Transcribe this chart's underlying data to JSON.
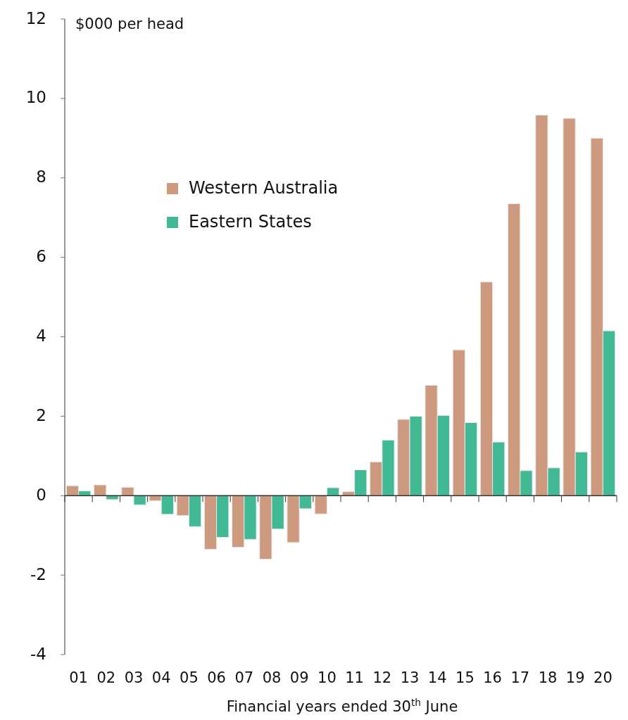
{
  "chart_data": {
    "type": "bar",
    "ylabel": "$000 per head",
    "xlabel": "Financial years ended 30$^{th}$ June",
    "categories": [
      "01",
      "02",
      "03",
      "04",
      "05",
      "06",
      "07",
      "08",
      "09",
      "10",
      "11",
      "12",
      "13",
      "14",
      "15",
      "16",
      "17",
      "18",
      "19",
      "20"
    ],
    "series": [
      {
        "name": "Western Australia",
        "color": "#cd9a80",
        "values": [
          0.25,
          0.27,
          0.21,
          -0.13,
          -0.5,
          -1.35,
          -1.3,
          -1.6,
          -1.18,
          -0.46,
          0.1,
          0.85,
          1.92,
          2.78,
          3.67,
          5.38,
          7.35,
          9.58,
          9.5,
          9.0
        ]
      },
      {
        "name": "Eastern States",
        "color": "#41b994",
        "values": [
          0.12,
          -0.1,
          -0.23,
          -0.47,
          -0.78,
          -1.05,
          -1.1,
          -0.84,
          -0.33,
          0.2,
          0.65,
          1.4,
          2.0,
          2.02,
          1.84,
          1.35,
          0.63,
          0.7,
          1.1,
          4.15
        ]
      }
    ],
    "ylim": [
      -4,
      12
    ],
    "yticks": [
      -4,
      -2,
      0,
      2,
      4,
      6,
      8,
      10,
      12
    ],
    "legend": "top left"
  }
}
